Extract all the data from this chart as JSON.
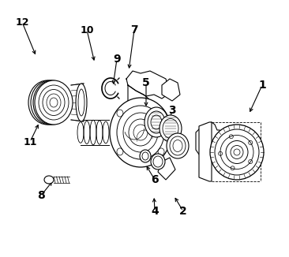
{
  "bg_color": "#ffffff",
  "line_color": "#000000",
  "figsize": [
    3.66,
    3.26
  ],
  "dpi": 100,
  "labels_info": [
    [
      "1",
      332,
      108,
      315,
      145
    ],
    [
      "2",
      232,
      268,
      220,
      248
    ],
    [
      "3",
      218,
      140,
      212,
      163
    ],
    [
      "4",
      196,
      268,
      195,
      248
    ],
    [
      "5",
      185,
      105,
      185,
      138
    ],
    [
      "6",
      196,
      228,
      184,
      208
    ],
    [
      "7",
      170,
      38,
      163,
      90
    ],
    [
      "8",
      52,
      248,
      68,
      228
    ],
    [
      "9",
      148,
      75,
      143,
      110
    ],
    [
      "10",
      110,
      38,
      120,
      80
    ],
    [
      "11",
      38,
      180,
      50,
      155
    ],
    [
      "12",
      28,
      28,
      46,
      72
    ]
  ]
}
